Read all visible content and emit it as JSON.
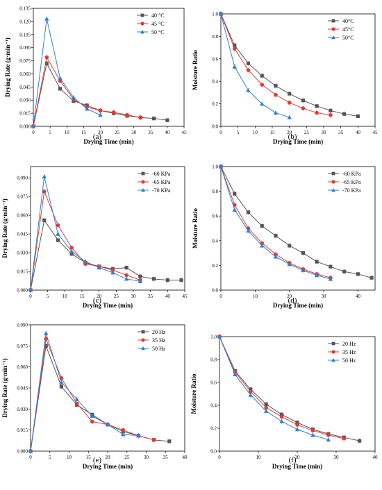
{
  "colors": {
    "s1": "#555555",
    "s2": "#e53935",
    "s3": "#2f80d1",
    "axis": "#000000"
  },
  "chart_data": [
    {
      "panel_label": "(a)",
      "type": "line",
      "xlabel": "Drying Time (min)",
      "ylabel": "Drying Rate (g·min⁻¹)",
      "xlim": [
        0,
        45
      ],
      "ylim": [
        0,
        0.135
      ],
      "xticks": [
        "0",
        "5",
        "10",
        "15",
        "20",
        "25",
        "30",
        "35",
        "40",
        "45"
      ],
      "yticks": [
        "0.000",
        "0.015",
        "0.030",
        "0.045",
        "0.060",
        "0.075",
        "0.090",
        "0.105",
        "0.120",
        "0.135"
      ],
      "legend_position": "top-right",
      "series": [
        {
          "name": "40 °C",
          "marker": "square",
          "color": "#555555",
          "x": [
            0,
            4,
            8,
            12,
            16,
            20,
            24,
            28,
            32,
            36,
            40
          ],
          "y": [
            0,
            0.072,
            0.043,
            0.029,
            0.024,
            0.018,
            0.015,
            0.012,
            0.01,
            0.009,
            0.007
          ]
        },
        {
          "name": "45 °C",
          "marker": "circle",
          "color": "#e53935",
          "x": [
            0,
            4,
            8,
            12,
            16,
            20,
            24,
            28,
            32
          ],
          "y": [
            0,
            0.079,
            0.052,
            0.031,
            0.022,
            0.018,
            0.016,
            0.013,
            0.01
          ]
        },
        {
          "name": "50 °C",
          "marker": "triangle",
          "color": "#2f80d1",
          "x": [
            0,
            4,
            8,
            12,
            16,
            20
          ],
          "y": [
            0,
            0.123,
            0.055,
            0.033,
            0.02,
            0.013
          ]
        }
      ]
    },
    {
      "panel_label": "(b)",
      "type": "line",
      "xlabel": "Drying Time (min)",
      "ylabel": "Moisture Ratio",
      "xlim": [
        0,
        45
      ],
      "ylim": [
        0,
        1.0
      ],
      "xticks": [
        "0",
        "5",
        "10",
        "15",
        "20",
        "25",
        "30",
        "35",
        "40",
        "45"
      ],
      "yticks": [
        "0.0",
        "0.2",
        "0.4",
        "0.6",
        "0.8",
        "1.0"
      ],
      "legend_position": "top-right",
      "series": [
        {
          "name": "40°C",
          "marker": "square",
          "color": "#555555",
          "x": [
            0,
            4,
            8,
            12,
            16,
            20,
            24,
            28,
            32,
            36,
            40
          ],
          "y": [
            1.0,
            0.72,
            0.56,
            0.45,
            0.36,
            0.29,
            0.23,
            0.18,
            0.14,
            0.11,
            0.09
          ]
        },
        {
          "name": "45°C",
          "marker": "circle",
          "color": "#e53935",
          "x": [
            0,
            4,
            8,
            12,
            16,
            20,
            24,
            28,
            32
          ],
          "y": [
            1.0,
            0.69,
            0.5,
            0.37,
            0.28,
            0.21,
            0.16,
            0.12,
            0.1
          ]
        },
        {
          "name": "50°C",
          "marker": "triangle",
          "color": "#2f80d1",
          "x": [
            0,
            4,
            8,
            12,
            16,
            20
          ],
          "y": [
            1.0,
            0.53,
            0.32,
            0.2,
            0.12,
            0.08
          ]
        }
      ]
    },
    {
      "panel_label": "(c)",
      "type": "line",
      "xlabel": "Drying Time (min)",
      "ylabel": "Drying Rate (g·min⁻¹)",
      "xlim": [
        0,
        45
      ],
      "ylim": [
        0,
        0.099
      ],
      "xticks": [
        "0",
        "5",
        "10",
        "15",
        "20",
        "25",
        "30",
        "35",
        "40",
        "45"
      ],
      "yticks": [
        "0.000",
        "0.015",
        "0.030",
        "0.045",
        "0.060",
        "0.075",
        "0.090"
      ],
      "legend_position": "top-right",
      "series": [
        {
          "name": "-60 KPa",
          "marker": "square",
          "color": "#555555",
          "x": [
            0,
            4,
            8,
            12,
            16,
            20,
            24,
            28,
            32,
            36,
            40,
            44
          ],
          "y": [
            0,
            0.056,
            0.04,
            0.029,
            0.022,
            0.019,
            0.017,
            0.018,
            0.011,
            0.009,
            0.008,
            0.008
          ]
        },
        {
          "name": "-65 KPa",
          "marker": "circle",
          "color": "#e53935",
          "x": [
            0,
            4,
            8,
            12,
            16,
            20,
            24,
            28,
            32
          ],
          "y": [
            0,
            0.079,
            0.052,
            0.034,
            0.021,
            0.019,
            0.016,
            0.012,
            0.008
          ]
        },
        {
          "name": "-70 KPa",
          "marker": "triangle",
          "color": "#2f80d1",
          "x": [
            0,
            4,
            8,
            12,
            16,
            20,
            24,
            28,
            32
          ],
          "y": [
            0,
            0.091,
            0.045,
            0.031,
            0.023,
            0.018,
            0.014,
            0.009,
            0.007
          ]
        }
      ]
    },
    {
      "panel_label": "(d)",
      "type": "line",
      "xlabel": "Drying Time (min)",
      "ylabel": "Moisture Ratio",
      "xlim": [
        0,
        45
      ],
      "ylim": [
        0,
        1.0
      ],
      "xticks": [
        "0",
        "10",
        "20",
        "30",
        "40"
      ],
      "yticks": [
        "0.0",
        "0.2",
        "0.4",
        "0.6",
        "0.8",
        "1.0"
      ],
      "legend_position": "top-right",
      "series": [
        {
          "name": "-60 KPa",
          "marker": "square",
          "color": "#555555",
          "x": [
            0,
            4,
            8,
            12,
            16,
            20,
            24,
            28,
            32,
            36,
            40,
            44
          ],
          "y": [
            1.0,
            0.78,
            0.63,
            0.52,
            0.44,
            0.36,
            0.3,
            0.23,
            0.19,
            0.15,
            0.13,
            0.1
          ]
        },
        {
          "name": "-65 KPa",
          "marker": "circle",
          "color": "#e53935",
          "x": [
            0,
            4,
            8,
            12,
            16,
            20,
            24,
            28,
            32
          ],
          "y": [
            1.0,
            0.69,
            0.5,
            0.38,
            0.29,
            0.22,
            0.17,
            0.13,
            0.1
          ]
        },
        {
          "name": "-70 KPa",
          "marker": "triangle",
          "color": "#2f80d1",
          "x": [
            0,
            4,
            8,
            12,
            16,
            20,
            24,
            28,
            32
          ],
          "y": [
            1.0,
            0.65,
            0.48,
            0.36,
            0.27,
            0.21,
            0.16,
            0.12,
            0.09
          ]
        }
      ]
    },
    {
      "panel_label": "(e)",
      "type": "line",
      "xlabel": "Drying Time (min)",
      "ylabel": "Drying Rate (g·min⁻¹)",
      "xlim": [
        0,
        40
      ],
      "ylim": [
        0,
        0.09
      ],
      "xticks": [
        "0",
        "5",
        "10",
        "15",
        "20",
        "25",
        "30",
        "35",
        "40"
      ],
      "yticks": [
        "0.000",
        "0.015",
        "0.030",
        "0.045",
        "0.060",
        "0.075",
        "0.090"
      ],
      "legend_position": "top-right",
      "series": [
        {
          "name": "20 Hz",
          "marker": "square",
          "color": "#555555",
          "x": [
            0,
            4,
            8,
            12,
            16,
            20,
            24,
            28,
            32,
            36
          ],
          "y": [
            0,
            0.075,
            0.046,
            0.033,
            0.026,
            0.019,
            0.014,
            0.011,
            0.008,
            0.007
          ]
        },
        {
          "name": "35 Hz",
          "marker": "circle",
          "color": "#e53935",
          "x": [
            0,
            4,
            8,
            12,
            16,
            20,
            24,
            28,
            32
          ],
          "y": [
            0,
            0.08,
            0.052,
            0.034,
            0.021,
            0.019,
            0.015,
            0.011,
            0.008
          ]
        },
        {
          "name": "50 Hz",
          "marker": "triangle",
          "color": "#2f80d1",
          "x": [
            0,
            4,
            8,
            12,
            16,
            20,
            24,
            28
          ],
          "y": [
            0,
            0.084,
            0.049,
            0.037,
            0.025,
            0.019,
            0.012,
            0.011
          ]
        }
      ]
    },
    {
      "panel_label": "(f)",
      "type": "line",
      "xlabel": "Drying Time (min)",
      "ylabel": "Moisture Ratio",
      "xlim": [
        0,
        40
      ],
      "ylim": [
        0,
        1.0
      ],
      "xticks": [
        "0",
        "10",
        "20",
        "30",
        "40"
      ],
      "yticks": [
        "0.0",
        "0.2",
        "0.4",
        "0.6",
        "0.8",
        "1.0"
      ],
      "legend_position": "top-right",
      "series": [
        {
          "name": "20 Hz",
          "marker": "square",
          "color": "#555555",
          "x": [
            0,
            4,
            8,
            12,
            16,
            20,
            24,
            28,
            32,
            36
          ],
          "y": [
            1.0,
            0.7,
            0.54,
            0.41,
            0.32,
            0.25,
            0.19,
            0.15,
            0.12,
            0.09
          ]
        },
        {
          "name": "35 Hz",
          "marker": "circle",
          "color": "#e53935",
          "x": [
            0,
            4,
            8,
            12,
            16,
            20,
            24,
            28,
            32
          ],
          "y": [
            1.0,
            0.69,
            0.52,
            0.38,
            0.3,
            0.23,
            0.18,
            0.14,
            0.11
          ]
        },
        {
          "name": "50 Hz",
          "marker": "triangle",
          "color": "#2f80d1",
          "x": [
            0,
            4,
            8,
            12,
            16,
            20,
            24,
            28
          ],
          "y": [
            1.0,
            0.67,
            0.49,
            0.35,
            0.26,
            0.19,
            0.14,
            0.1
          ]
        }
      ]
    }
  ]
}
